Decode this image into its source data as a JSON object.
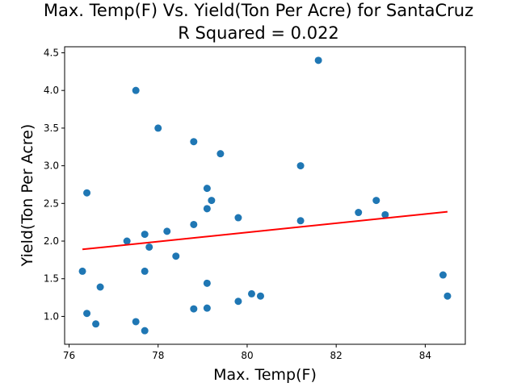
{
  "chart_data": {
    "type": "scatter",
    "title_line1": "Max. Temp(F) Vs. Yield(Ton Per Acre) for SantaCruz",
    "title_line2": "R Squared =  0.022",
    "xlabel": "Max. Temp(F)",
    "ylabel": "Yield(Ton Per Acre)",
    "xlim": [
      75.9,
      84.9
    ],
    "ylim": [
      0.63,
      4.58
    ],
    "xticks": [
      76,
      78,
      80,
      82,
      84
    ],
    "xtick_labels": [
      "76",
      "78",
      "80",
      "82",
      "84"
    ],
    "yticks": [
      1.0,
      1.5,
      2.0,
      2.5,
      3.0,
      3.5,
      4.0,
      4.5
    ],
    "ytick_labels": [
      "1.0",
      "1.5",
      "2.0",
      "2.5",
      "3.0",
      "3.5",
      "4.0",
      "4.5"
    ],
    "grid": false,
    "point_color": "#1f77b4",
    "line_color": "#ff0000",
    "points": [
      {
        "x": 76.3,
        "y": 1.6
      },
      {
        "x": 76.4,
        "y": 2.64
      },
      {
        "x": 76.4,
        "y": 1.04
      },
      {
        "x": 76.6,
        "y": 0.9
      },
      {
        "x": 76.7,
        "y": 1.39
      },
      {
        "x": 77.3,
        "y": 2.0
      },
      {
        "x": 77.5,
        "y": 4.0
      },
      {
        "x": 77.5,
        "y": 0.93
      },
      {
        "x": 77.7,
        "y": 2.09
      },
      {
        "x": 77.7,
        "y": 1.6
      },
      {
        "x": 77.7,
        "y": 0.81
      },
      {
        "x": 77.8,
        "y": 1.92
      },
      {
        "x": 78.0,
        "y": 3.5
      },
      {
        "x": 78.2,
        "y": 2.13
      },
      {
        "x": 78.4,
        "y": 1.8
      },
      {
        "x": 78.8,
        "y": 3.32
      },
      {
        "x": 78.8,
        "y": 2.22
      },
      {
        "x": 78.8,
        "y": 1.1
      },
      {
        "x": 79.1,
        "y": 2.7
      },
      {
        "x": 79.1,
        "y": 2.43
      },
      {
        "x": 79.1,
        "y": 1.44
      },
      {
        "x": 79.1,
        "y": 1.11
      },
      {
        "x": 79.2,
        "y": 2.54
      },
      {
        "x": 79.4,
        "y": 3.16
      },
      {
        "x": 79.8,
        "y": 2.31
      },
      {
        "x": 79.8,
        "y": 1.2
      },
      {
        "x": 80.1,
        "y": 1.3
      },
      {
        "x": 80.3,
        "y": 1.27
      },
      {
        "x": 81.2,
        "y": 3.0
      },
      {
        "x": 81.2,
        "y": 2.27
      },
      {
        "x": 81.6,
        "y": 4.4
      },
      {
        "x": 82.5,
        "y": 2.38
      },
      {
        "x": 82.9,
        "y": 2.54
      },
      {
        "x": 83.1,
        "y": 2.35
      },
      {
        "x": 84.4,
        "y": 1.55
      },
      {
        "x": 84.5,
        "y": 1.27
      }
    ],
    "fit_line": {
      "x": [
        76.3,
        84.5
      ],
      "y": [
        1.89,
        2.39
      ]
    }
  }
}
